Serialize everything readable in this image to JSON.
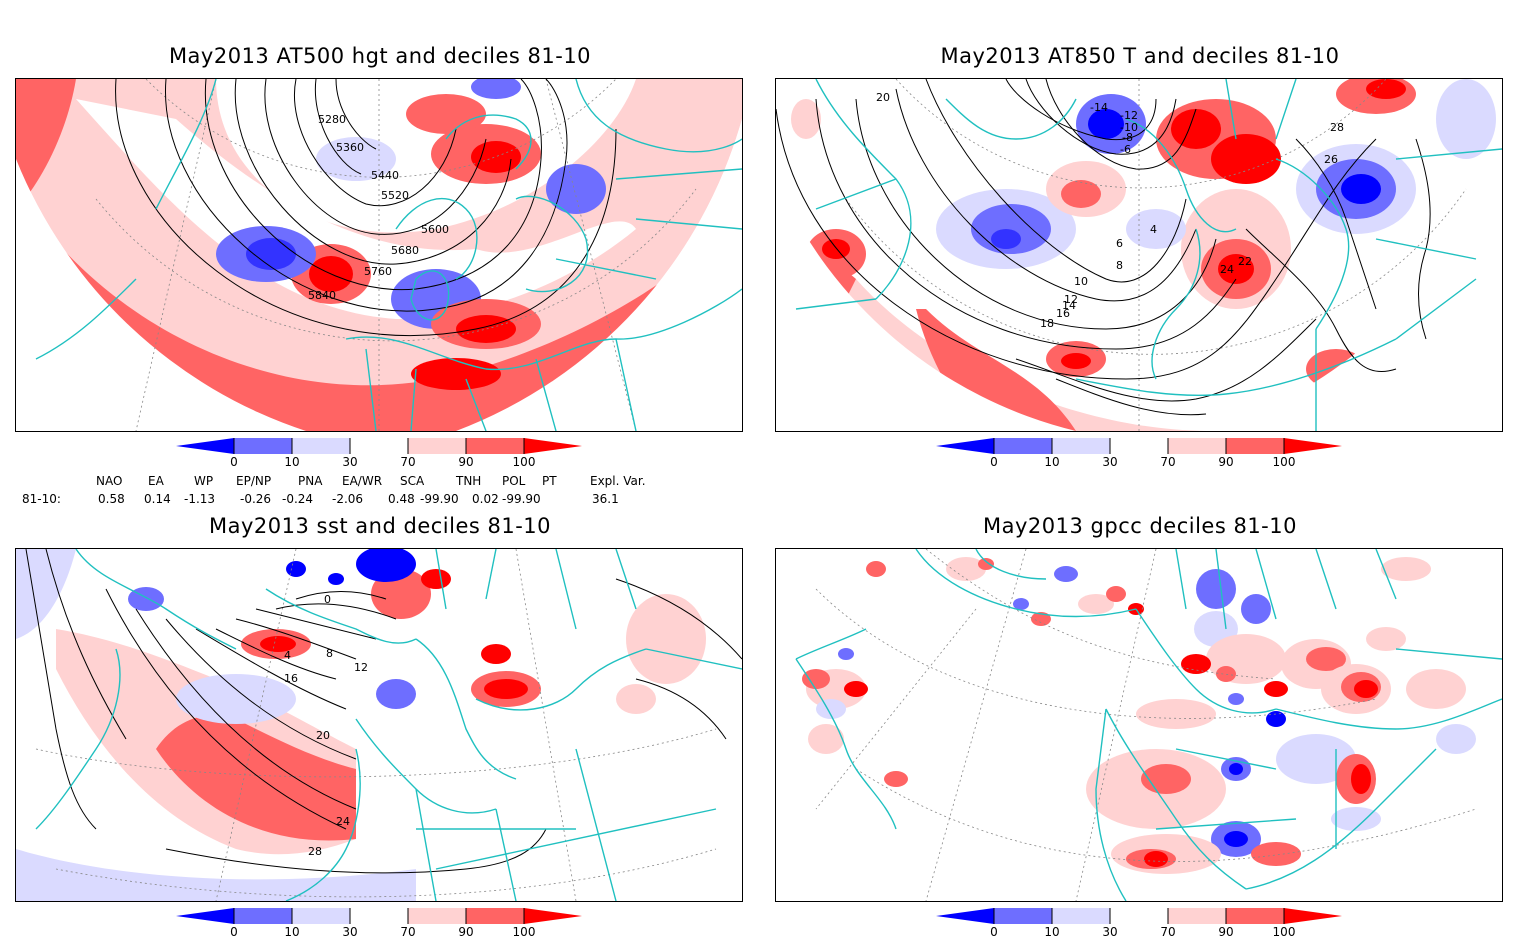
{
  "panels": {
    "p1": {
      "title": "May2013 AT500 hgt and deciles 81-10",
      "contour_labels": [
        "5280",
        "5360",
        "5440",
        "5520",
        "5600",
        "5680",
        "5760",
        "5840"
      ]
    },
    "p2": {
      "title": "May2013 AT850 T and deciles 81-10",
      "contour_labels": [
        "-14",
        "-12",
        "-10",
        "-8",
        "-6",
        "4",
        "6",
        "8",
        "10",
        "12",
        "14",
        "16",
        "18",
        "20",
        "22",
        "24",
        "26",
        "28"
      ]
    },
    "p3": {
      "title": "May2013 sst and deciles 81-10",
      "contour_labels": [
        "0",
        "4",
        "8",
        "12",
        "16",
        "20",
        "24",
        "28"
      ]
    },
    "p4": {
      "title": "May2013 gpcc deciles 81-10"
    }
  },
  "colorbar": {
    "ticks": [
      "0",
      "10",
      "30",
      "70",
      "90",
      "100"
    ],
    "colors": [
      "#0000ff",
      "#6e6eff",
      "#dadaff",
      "#ffffff",
      "#ffd2d2",
      "#ff6464",
      "#ff0000"
    ]
  },
  "teleconnection": {
    "row_label": "81-10:",
    "headers": [
      "NAO",
      "EA",
      "WP",
      "EP/NP",
      "PNA",
      "EA/WR",
      "SCA",
      "TNH",
      "POL",
      "PT",
      "Expl. Var."
    ],
    "values": [
      "0.58",
      "0.14",
      "-1.13",
      "-0.26",
      "-0.24",
      "-2.06",
      "0.48",
      "-99.90",
      "0.02",
      "-99.90",
      "36.1"
    ]
  },
  "map_colors": {
    "coast": "#20c0c0",
    "contour": "#000000",
    "grid": "#888888"
  }
}
